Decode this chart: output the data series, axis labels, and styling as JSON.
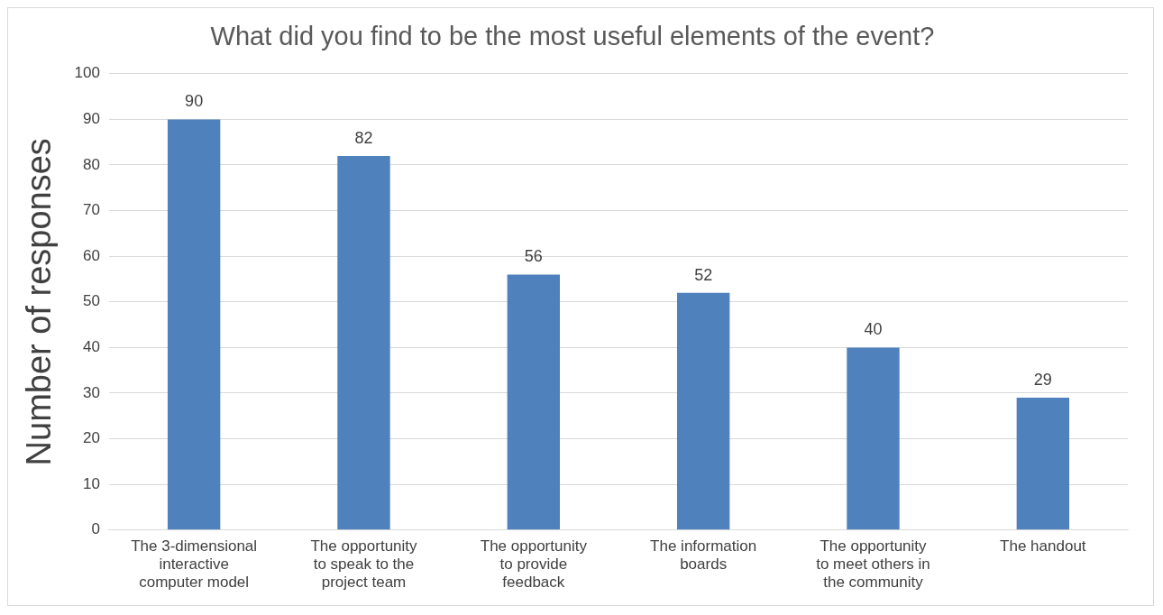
{
  "chart_data": {
    "type": "bar",
    "title": "What did you find to be the most useful elements of the event?",
    "ylabel": "Number of responses",
    "categories": [
      "The 3-dimensional interactive computer model",
      "The opportunity to speak to the project team",
      "The opportunity to provide feedback",
      "The information boards",
      "The opportunity to meet others in the community",
      "The handout"
    ],
    "values": [
      90,
      82,
      56,
      52,
      40,
      29
    ],
    "color": "#4f81bd",
    "ylim": [
      0,
      100
    ],
    "yticks": [
      0,
      10,
      20,
      30,
      40,
      50,
      60,
      70,
      80,
      90,
      100
    ],
    "grid": "y",
    "data_labels": true,
    "legend": false
  }
}
